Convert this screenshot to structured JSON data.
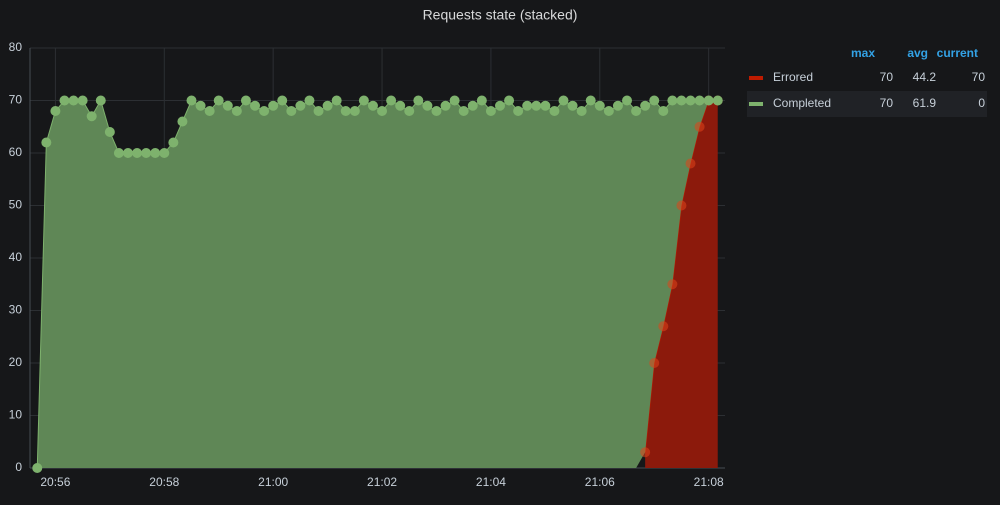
{
  "chart_data": {
    "type": "line",
    "stacked": true,
    "title": "Requests state (stacked)",
    "x": [
      "20:55:40",
      "20:55:50",
      "20:56:00",
      "20:56:10",
      "20:56:20",
      "20:56:30",
      "20:56:40",
      "20:56:50",
      "20:57:00",
      "20:57:10",
      "20:57:20",
      "20:57:30",
      "20:57:40",
      "20:57:50",
      "20:58:00",
      "20:58:10",
      "20:58:20",
      "20:58:30",
      "20:58:40",
      "20:58:50",
      "20:59:00",
      "20:59:10",
      "20:59:20",
      "20:59:30",
      "20:59:40",
      "20:59:50",
      "21:00:00",
      "21:00:10",
      "21:00:20",
      "21:00:30",
      "21:00:40",
      "21:00:50",
      "21:01:00",
      "21:01:10",
      "21:01:20",
      "21:01:30",
      "21:01:40",
      "21:01:50",
      "21:02:00",
      "21:02:10",
      "21:02:20",
      "21:02:30",
      "21:02:40",
      "21:02:50",
      "21:03:00",
      "21:03:10",
      "21:03:20",
      "21:03:30",
      "21:03:40",
      "21:03:50",
      "21:04:00",
      "21:04:10",
      "21:04:20",
      "21:04:30",
      "21:04:40",
      "21:04:50",
      "21:05:00",
      "21:05:10",
      "21:05:20",
      "21:05:30",
      "21:05:40",
      "21:05:50",
      "21:06:00",
      "21:06:10",
      "21:06:20",
      "21:06:30",
      "21:06:40",
      "21:06:50",
      "21:07:00",
      "21:07:10",
      "21:07:20",
      "21:07:30",
      "21:07:40",
      "21:07:50",
      "21:08:00",
      "21:08:10"
    ],
    "series": [
      {
        "name": "Errored",
        "color": "#bf1b00",
        "fill": "#8c1a0c",
        "max": 70,
        "avg": 44.2,
        "current": 70,
        "values": [
          null,
          null,
          null,
          null,
          null,
          null,
          null,
          null,
          null,
          null,
          null,
          null,
          null,
          null,
          null,
          null,
          null,
          null,
          null,
          null,
          null,
          null,
          null,
          null,
          null,
          null,
          null,
          null,
          null,
          null,
          null,
          null,
          null,
          null,
          null,
          null,
          null,
          null,
          null,
          null,
          null,
          null,
          null,
          null,
          null,
          null,
          null,
          null,
          null,
          null,
          null,
          null,
          null,
          null,
          null,
          null,
          null,
          null,
          null,
          null,
          null,
          null,
          null,
          null,
          null,
          null,
          null,
          3,
          20,
          27,
          35,
          50,
          58,
          65,
          70,
          70
        ]
      },
      {
        "name": "Completed",
        "color": "#7eb26d",
        "fill": "#5f8756",
        "max": 70,
        "avg": 61.9,
        "current": 0,
        "values": [
          0,
          62,
          68,
          70,
          70,
          70,
          67,
          70,
          64,
          60,
          60,
          60,
          60,
          60,
          60,
          62,
          66,
          70,
          69,
          68,
          70,
          69,
          68,
          70,
          69,
          68,
          69,
          70,
          68,
          69,
          70,
          68,
          69,
          70,
          68,
          68,
          70,
          69,
          68,
          70,
          69,
          68,
          70,
          69,
          68,
          69,
          70,
          68,
          69,
          70,
          68,
          69,
          70,
          68,
          69,
          69,
          69,
          68,
          70,
          69,
          68,
          70,
          69,
          68,
          69,
          70,
          68,
          66,
          50,
          41,
          35,
          20,
          12,
          5,
          0,
          0
        ]
      }
    ],
    "legend_headers": [
      "max",
      "avg",
      "current"
    ],
    "xlim": [
      "20:55:32",
      "21:08:18"
    ],
    "xticks": [
      "20:56",
      "20:58",
      "21:00",
      "21:02",
      "21:04",
      "21:06",
      "21:08"
    ],
    "ylim": [
      0,
      80
    ],
    "yticks": [
      0,
      10,
      20,
      30,
      40,
      50,
      60,
      70,
      80
    ],
    "grid": true
  }
}
